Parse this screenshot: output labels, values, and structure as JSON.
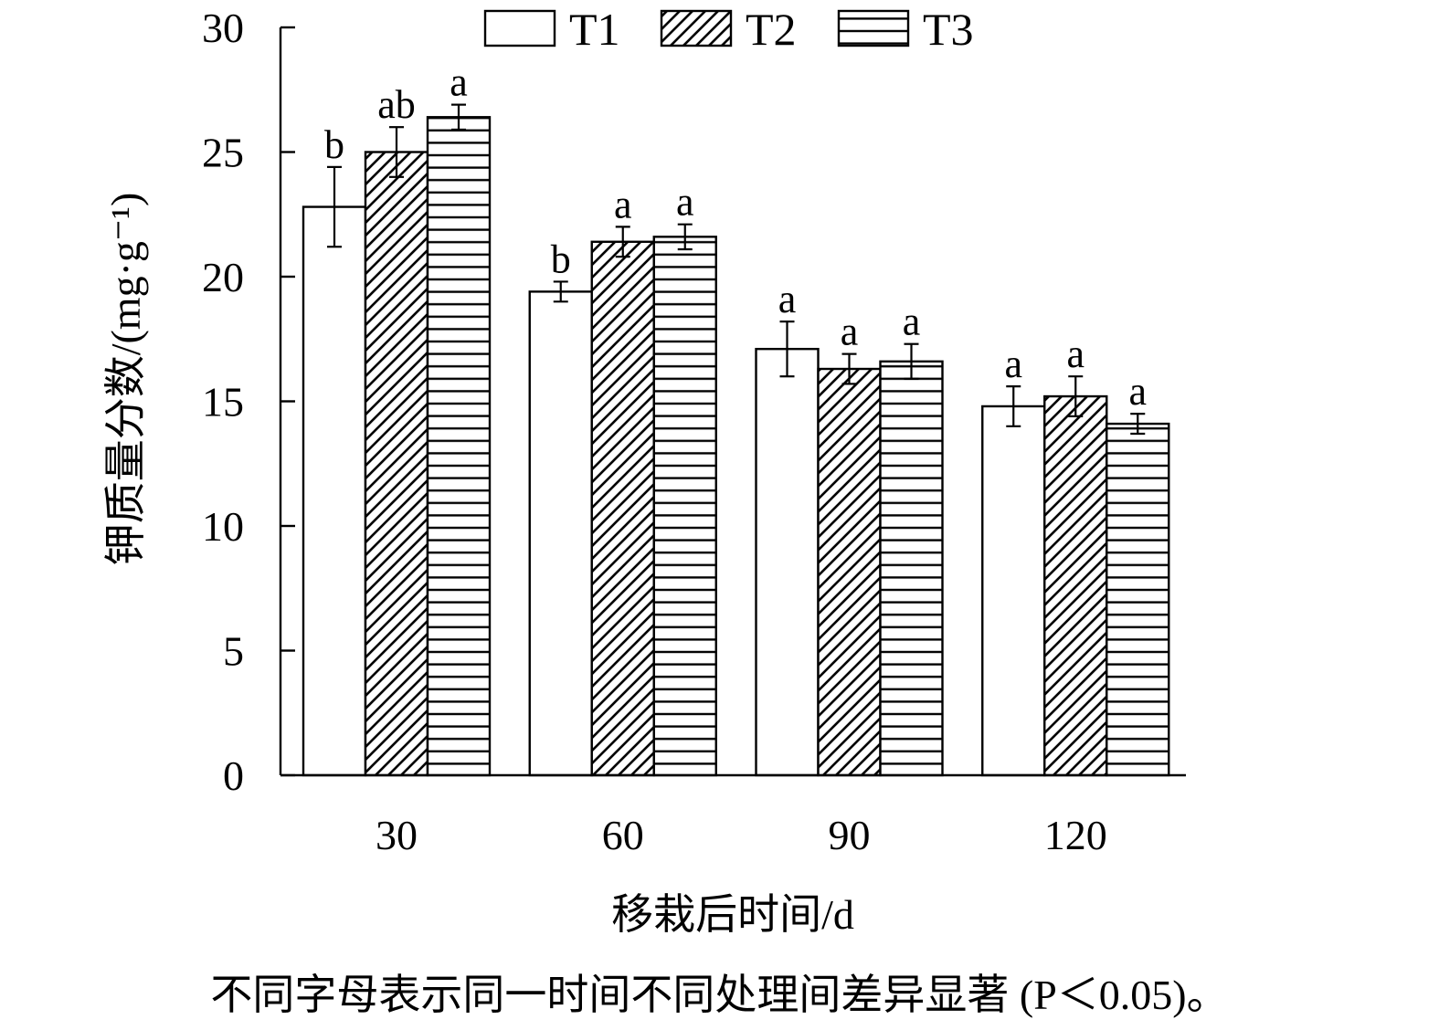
{
  "chart_data": {
    "type": "bar",
    "categories": [
      "30",
      "60",
      "90",
      "120"
    ],
    "series": [
      {
        "name": "T1",
        "values": [
          22.8,
          19.4,
          17.1,
          14.8
        ],
        "errors": [
          1.6,
          0.4,
          1.1,
          0.8
        ],
        "sig": [
          "b",
          "b",
          "a",
          "a"
        ],
        "pattern": "none"
      },
      {
        "name": "T2",
        "values": [
          25.0,
          21.4,
          16.3,
          15.2
        ],
        "errors": [
          1.0,
          0.6,
          0.6,
          0.8
        ],
        "sig": [
          "ab",
          "a",
          "a",
          "a"
        ],
        "pattern": "diagonal"
      },
      {
        "name": "T3",
        "values": [
          26.4,
          21.6,
          16.6,
          14.1
        ],
        "errors": [
          0.5,
          0.5,
          0.7,
          0.4
        ],
        "sig": [
          "a",
          "a",
          "a",
          "a"
        ],
        "pattern": "horizontal"
      }
    ],
    "ylim": [
      0,
      30
    ],
    "yticks": [
      0,
      5,
      10,
      15,
      20,
      25,
      30
    ],
    "ylabel": "钾质量分数/(mg·g⁻¹)",
    "xlabel": "移栽后时间/d",
    "legend": "top",
    "grid": false
  },
  "note": "不同字母表示同一时间不同处理间差异显著 (P＜0.05)。"
}
